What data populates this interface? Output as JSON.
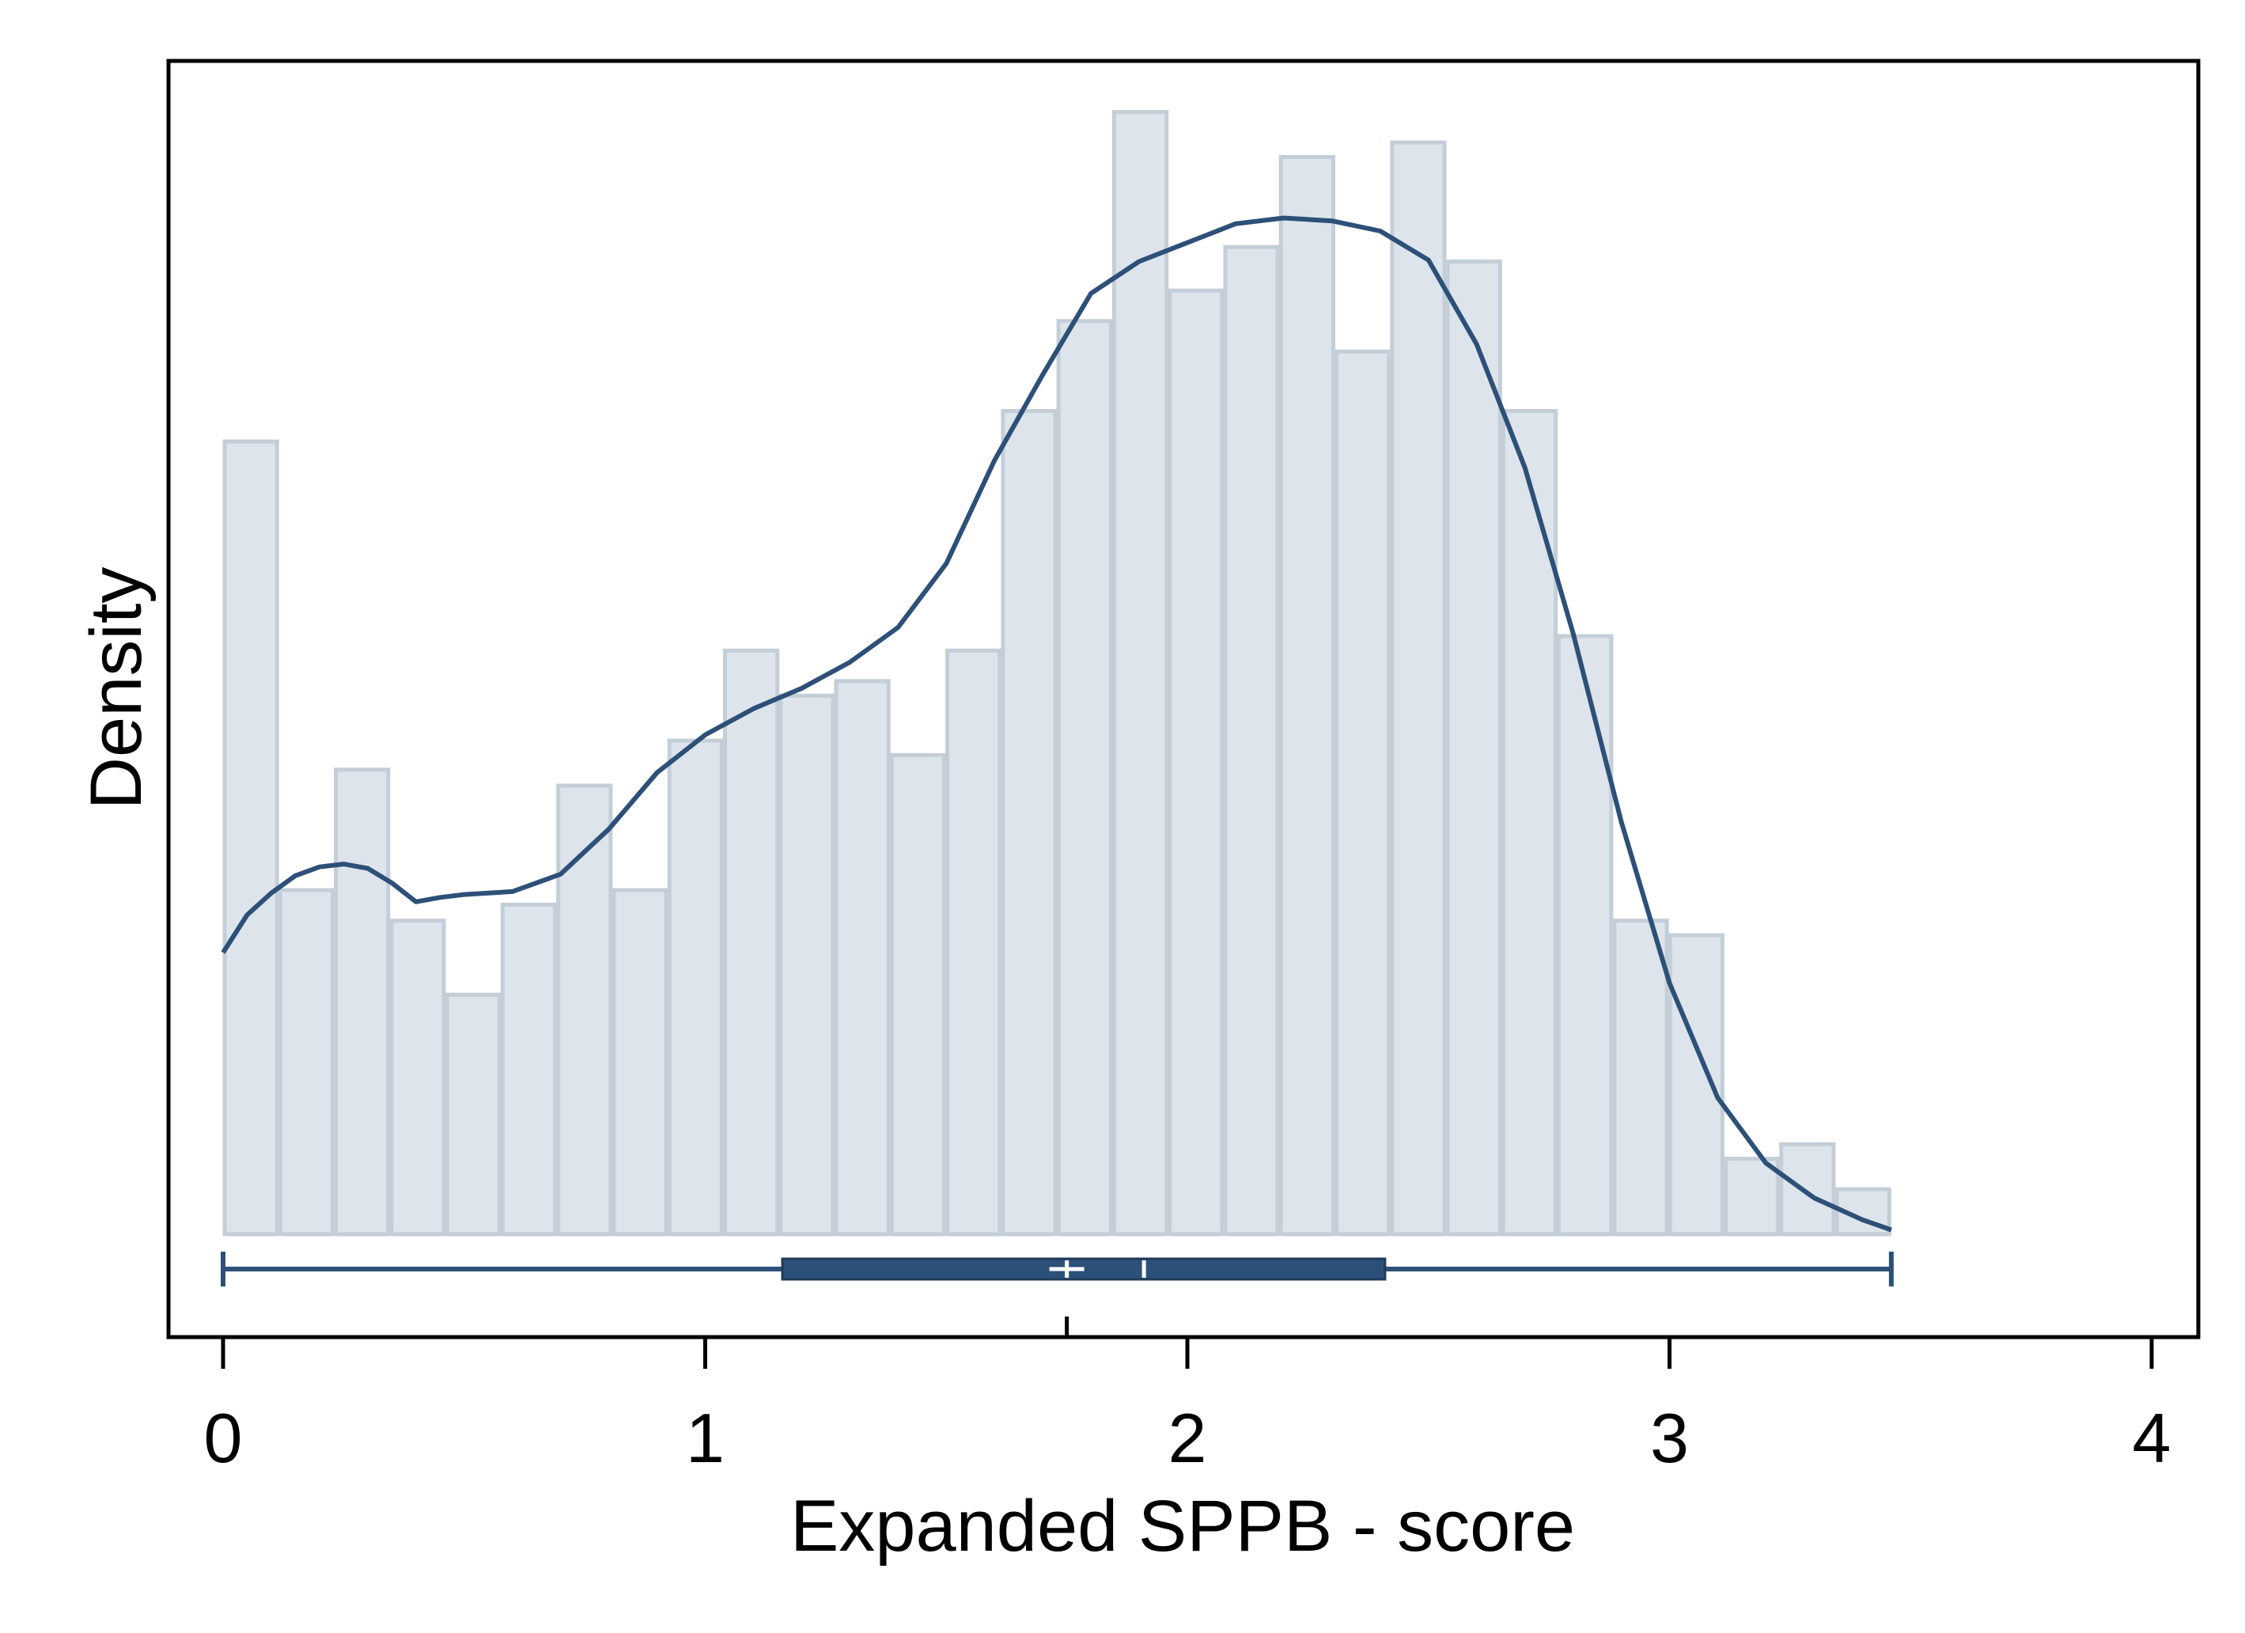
{
  "chart_data": {
    "type": "histogram",
    "title": "",
    "xlabel": "Expanded SPPB - score",
    "ylabel": "Density",
    "xlim": [
      0,
      4
    ],
    "x_ticks": [
      "0",
      "1",
      "2",
      "3",
      "4"
    ],
    "y_ticks": [],
    "grid": false,
    "legend": "none",
    "colors": {
      "bar_fill": "#dde4eb",
      "bar_stroke": "#c3ced8",
      "curve": "#2d5078",
      "box": "#2d5078",
      "frame": "#000000"
    },
    "bin_width": 0.1153,
    "bins": [
      {
        "x0": 0.0,
        "value": 0.546
      },
      {
        "x0": 0.1153,
        "value": 0.237
      },
      {
        "x0": 0.2306,
        "value": 0.32
      },
      {
        "x0": 0.3459,
        "value": 0.216
      },
      {
        "x0": 0.4612,
        "value": 0.165
      },
      {
        "x0": 0.5765,
        "value": 0.227
      },
      {
        "x0": 0.6918,
        "value": 0.309
      },
      {
        "x0": 0.8071,
        "value": 0.237
      },
      {
        "x0": 0.9224,
        "value": 0.34
      },
      {
        "x0": 1.0377,
        "value": 0.402
      },
      {
        "x0": 1.153,
        "value": 0.371
      },
      {
        "x0": 1.2683,
        "value": 0.381
      },
      {
        "x0": 1.3836,
        "value": 0.33
      },
      {
        "x0": 1.4989,
        "value": 0.402
      },
      {
        "x0": 1.6142,
        "value": 0.567
      },
      {
        "x0": 1.7295,
        "value": 0.629
      },
      {
        "x0": 1.8448,
        "value": 0.773
      },
      {
        "x0": 1.9601,
        "value": 0.65
      },
      {
        "x0": 2.0754,
        "value": 0.68
      },
      {
        "x0": 2.1907,
        "value": 0.742
      },
      {
        "x0": 2.306,
        "value": 0.608
      },
      {
        "x0": 2.4213,
        "value": 0.752
      },
      {
        "x0": 2.5366,
        "value": 0.67
      },
      {
        "x0": 2.6519,
        "value": 0.567
      },
      {
        "x0": 2.7672,
        "value": 0.412
      },
      {
        "x0": 2.8825,
        "value": 0.216
      },
      {
        "x0": 2.9978,
        "value": 0.206
      },
      {
        "x0": 3.1131,
        "value": 0.052
      },
      {
        "x0": 3.2284,
        "value": 0.062
      },
      {
        "x0": 3.3437,
        "value": 0.031
      }
    ],
    "density_curve": {
      "x": [
        0.0,
        0.05,
        0.1,
        0.15,
        0.2,
        0.25,
        0.3,
        0.35,
        0.4,
        0.45,
        0.5,
        0.6,
        0.7,
        0.8,
        0.9,
        1.0,
        1.1,
        1.2,
        1.3,
        1.4,
        1.5,
        1.6,
        1.7,
        1.8,
        1.9,
        2.0,
        2.1,
        2.2,
        2.3,
        2.4,
        2.5,
        2.6,
        2.7,
        2.8,
        2.9,
        3.0,
        3.1,
        3.2,
        3.3,
        3.4,
        3.46
      ],
      "y": [
        0.194,
        0.22,
        0.235,
        0.247,
        0.253,
        0.255,
        0.252,
        0.242,
        0.229,
        0.232,
        0.234,
        0.236,
        0.248,
        0.279,
        0.318,
        0.344,
        0.362,
        0.376,
        0.394,
        0.418,
        0.462,
        0.533,
        0.592,
        0.648,
        0.67,
        0.683,
        0.696,
        0.7,
        0.698,
        0.691,
        0.671,
        0.613,
        0.528,
        0.414,
        0.284,
        0.173,
        0.094,
        0.049,
        0.025,
        0.01,
        0.003
      ]
    },
    "boxplot": {
      "min": 0.0,
      "q1": 1.16,
      "median": 1.91,
      "mean": 1.75,
      "q3": 2.41,
      "max": 3.46
    }
  }
}
